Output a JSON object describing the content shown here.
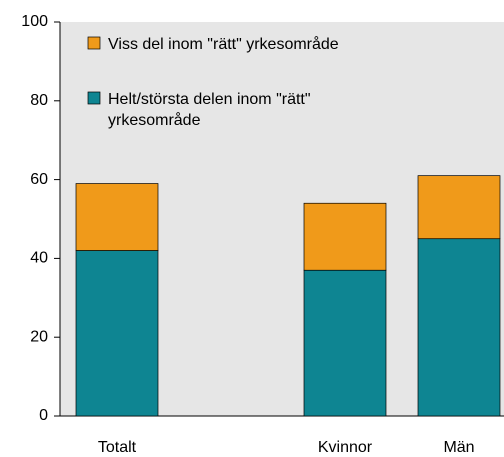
{
  "chart_data": {
    "type": "stacked_bar",
    "categories": [
      "Totalt",
      null,
      "Kvinnor",
      "Män"
    ],
    "series": [
      {
        "name": "Helt/största delen inom \"rätt\" yrkesområde",
        "color": "#0e8592",
        "values": [
          42,
          null,
          37,
          45
        ]
      },
      {
        "name": "Viss del inom \"rätt\" yrkesområde",
        "color": "#f09a1a",
        "values": [
          17,
          null,
          17,
          16
        ]
      }
    ],
    "ylim": [
      0,
      100
    ],
    "yticks": [
      0,
      20,
      40,
      60,
      80,
      100
    ],
    "grid": false
  }
}
